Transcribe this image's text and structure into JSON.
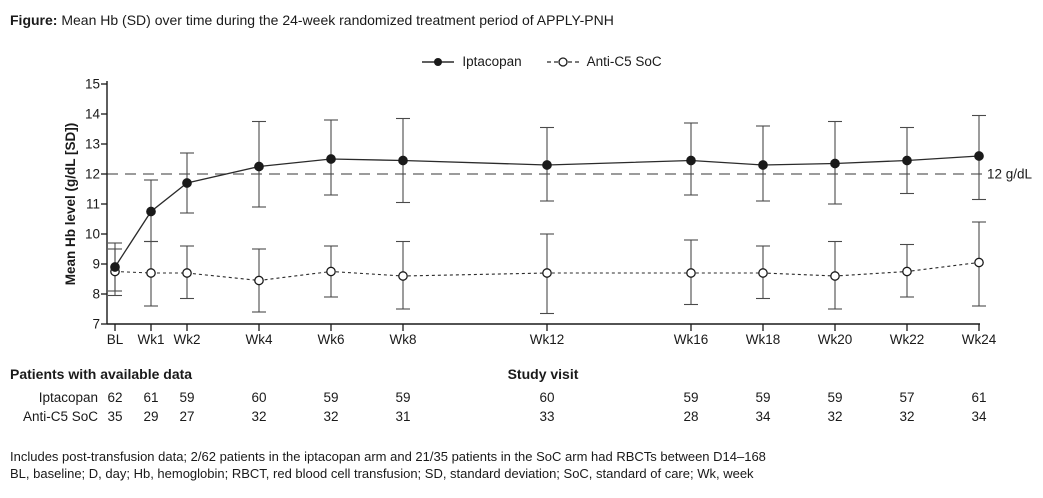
{
  "figure_title": {
    "prefix": "Figure:",
    "text": " Mean Hb (SD) over time during the 24-week randomized treatment period of APPLY-PNH"
  },
  "legend": [
    {
      "label": "Iptacopan",
      "marker": "filled-circle",
      "line": "solid"
    },
    {
      "label": "Anti-C5 SoC",
      "marker": "open-circle",
      "line": "dashed"
    }
  ],
  "chart_data": {
    "type": "line",
    "title": "Mean Hb (SD) over time during the 24-week randomized treatment period of APPLY-PNH",
    "xlabel": "Study visit",
    "ylabel": "Mean Hb level (g/dL [SD])",
    "ylim": [
      7,
      15
    ],
    "yticks": [
      7,
      8,
      9,
      10,
      11,
      12,
      13,
      14,
      15
    ],
    "grid": false,
    "legend_position": "top-center",
    "categories": [
      "BL",
      "Wk1",
      "Wk2",
      "Wk4",
      "Wk6",
      "Wk8",
      "Wk12",
      "Wk16",
      "Wk18",
      "Wk20",
      "Wk22",
      "Wk24"
    ],
    "x_weeks": [
      0,
      1,
      2,
      4,
      6,
      8,
      12,
      16,
      18,
      20,
      22,
      24
    ],
    "reference_line": {
      "y": 12,
      "label": "12 g/dL",
      "style": "long-dash"
    },
    "series": [
      {
        "name": "Iptacopan",
        "marker": "filled-circle",
        "line": "solid",
        "values": [
          8.9,
          10.75,
          11.7,
          12.25,
          12.5,
          12.45,
          12.3,
          12.45,
          12.3,
          12.35,
          12.45,
          12.6
        ],
        "err_low": [
          8.1,
          9.75,
          10.7,
          10.9,
          11.3,
          11.05,
          11.1,
          11.3,
          11.1,
          11.0,
          11.35,
          11.15
        ],
        "err_high": [
          9.7,
          11.8,
          12.7,
          13.75,
          13.8,
          13.85,
          13.55,
          13.7,
          13.6,
          13.75,
          13.55,
          13.95
        ]
      },
      {
        "name": "Anti-C5 SoC",
        "marker": "open-circle",
        "line": "dashed",
        "values": [
          8.75,
          8.7,
          8.7,
          8.45,
          8.75,
          8.6,
          8.7,
          8.7,
          8.7,
          8.6,
          8.75,
          9.05
        ],
        "err_low": [
          7.95,
          7.6,
          7.85,
          7.4,
          7.9,
          7.5,
          7.35,
          7.65,
          7.85,
          7.5,
          7.9,
          7.6
        ],
        "err_high": [
          9.5,
          9.75,
          9.6,
          9.5,
          9.6,
          9.75,
          10.0,
          9.8,
          9.6,
          9.75,
          9.65,
          10.4
        ]
      }
    ]
  },
  "patients_table": {
    "title": "Patients with available data",
    "rows": [
      {
        "label": "Iptacopan",
        "counts": [
          62,
          61,
          59,
          60,
          59,
          59,
          60,
          59,
          59,
          59,
          57,
          61
        ]
      },
      {
        "label": "Anti-C5 SoC",
        "counts": [
          35,
          29,
          27,
          32,
          32,
          31,
          33,
          28,
          34,
          32,
          32,
          34
        ]
      }
    ]
  },
  "footnotes": [
    "Includes post-transfusion data; 2/62 patients in the iptacopan arm and 21/35 patients in the SoC arm had RBCTs between D14–168",
    "BL, baseline; D, day; Hb, hemoglobin; RBCT, red blood cell transfusion; SD, standard deviation; SoC, standard of care; Wk, week"
  ],
  "colors": {
    "ink": "#1a1a1a",
    "series_stroke": "#2b2b2b",
    "error_bar": "#4a4a4a",
    "reference": "#5f5f5f"
  }
}
